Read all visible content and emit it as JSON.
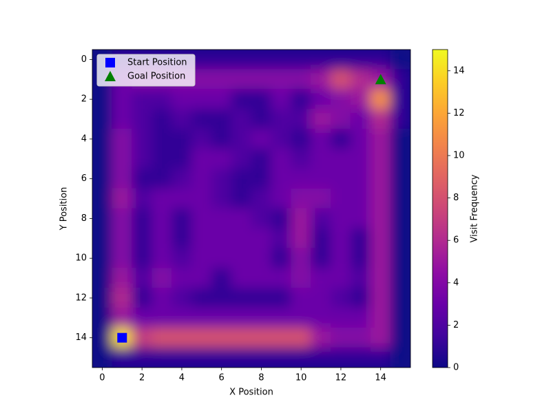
{
  "chart_data": {
    "type": "heatmap",
    "xlabel": "X Position",
    "ylabel": "Y Position",
    "colorbar_label": "Visit Frequency",
    "colormap": "plasma",
    "xlim": [
      -0.5,
      15.5
    ],
    "ylim": [
      15.5,
      -0.5
    ],
    "xticks": [
      0,
      2,
      4,
      6,
      8,
      10,
      12,
      14
    ],
    "yticks": [
      0,
      2,
      4,
      6,
      8,
      10,
      12,
      14
    ],
    "clim": [
      0,
      15
    ],
    "cticks": [
      0,
      2,
      4,
      6,
      8,
      10,
      12,
      14
    ],
    "z": [
      [
        0,
        1,
        1,
        1,
        1,
        1,
        1,
        1,
        1,
        1,
        1,
        1,
        1,
        1,
        1,
        0
      ],
      [
        0,
        3,
        4,
        4,
        4,
        4,
        4,
        4,
        4,
        4,
        4,
        5,
        8,
        6,
        5,
        1
      ],
      [
        0,
        3,
        2,
        2,
        3,
        3,
        3,
        1,
        1,
        3,
        1,
        3,
        4,
        5,
        11,
        1
      ],
      [
        0,
        3,
        2,
        1,
        2,
        1,
        1,
        2,
        1,
        2,
        2,
        5,
        4,
        3,
        6,
        1
      ],
      [
        0,
        4,
        2,
        1,
        1,
        2,
        1,
        2,
        3,
        2,
        1,
        3,
        1,
        3,
        5,
        0
      ],
      [
        0,
        4,
        2,
        1,
        1,
        3,
        3,
        2,
        1,
        3,
        2,
        3,
        3,
        3,
        5,
        0
      ],
      [
        0,
        4,
        1,
        1,
        2,
        3,
        2,
        1,
        1,
        3,
        3,
        3,
        3,
        3,
        5,
        0
      ],
      [
        0,
        5,
        2,
        3,
        3,
        3,
        2,
        1,
        2,
        3,
        4,
        4,
        3,
        3,
        5,
        0
      ],
      [
        0,
        4,
        1,
        3,
        1,
        3,
        3,
        3,
        2,
        1,
        5,
        2,
        3,
        3,
        5,
        0
      ],
      [
        0,
        4,
        1,
        3,
        1,
        3,
        3,
        3,
        3,
        2,
        5,
        1,
        3,
        1,
        5,
        0
      ],
      [
        0,
        4,
        1,
        3,
        2,
        3,
        3,
        3,
        3,
        1,
        4,
        1,
        3,
        1,
        5,
        0
      ],
      [
        0,
        5,
        2,
        4,
        3,
        3,
        1,
        3,
        3,
        3,
        4,
        3,
        3,
        2,
        5,
        0
      ],
      [
        0,
        6,
        1,
        3,
        2,
        1,
        1,
        1,
        1,
        1,
        3,
        3,
        2,
        1,
        5,
        0
      ],
      [
        0,
        5,
        3,
        3,
        3,
        3,
        3,
        3,
        3,
        3,
        3,
        3,
        3,
        3,
        5,
        0
      ],
      [
        0,
        14,
        7,
        8,
        8,
        8,
        8,
        8,
        8,
        8,
        8,
        5,
        4,
        4,
        5,
        0
      ],
      [
        0,
        1,
        1,
        1,
        1,
        1,
        1,
        1,
        1,
        1,
        1,
        1,
        1,
        1,
        1,
        0
      ]
    ],
    "markers": [
      {
        "name": "Start Position",
        "x": 1,
        "y": 14,
        "color": "#0000ff",
        "shape": "square"
      },
      {
        "name": "Goal Position",
        "x": 14,
        "y": 1,
        "color": "#008000",
        "shape": "triangle"
      }
    ],
    "legend": "upper left"
  }
}
